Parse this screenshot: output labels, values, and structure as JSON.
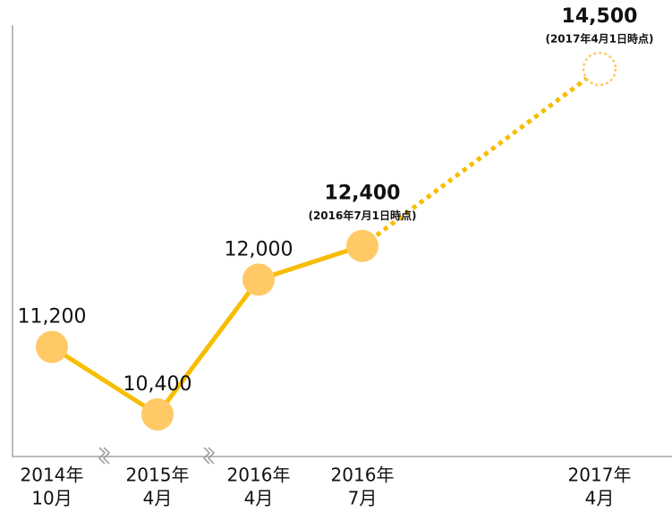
{
  "chart_data": {
    "type": "line",
    "categories": [
      [
        "2014年",
        "10月"
      ],
      [
        "2015年",
        "4月"
      ],
      [
        "2016年",
        "4月"
      ],
      [
        "2016年",
        "7月"
      ],
      [
        "2017年",
        "4月"
      ]
    ],
    "values": [
      11200,
      10400,
      12000,
      12400,
      14500
    ],
    "value_labels": [
      "11,200",
      "10,400",
      "12,000",
      "12,400",
      "14,500"
    ],
    "annotations": [
      null,
      null,
      null,
      "(2016年7月1日時点)",
      "(2017年4月1日時点)"
    ],
    "projected": [
      false,
      false,
      false,
      false,
      true
    ],
    "color": "#f7bd00",
    "marker_color": "#ffc966",
    "ylim": [
      9900,
      15000
    ]
  }
}
